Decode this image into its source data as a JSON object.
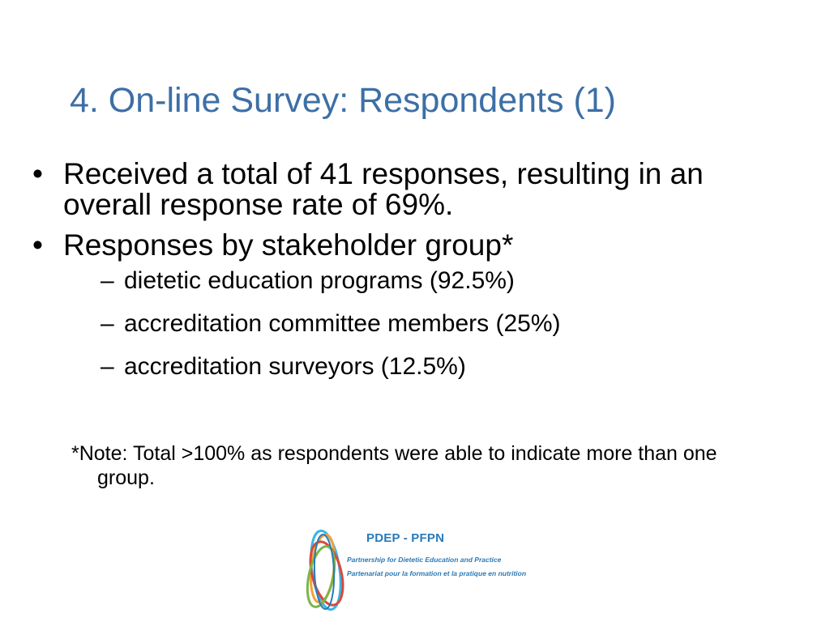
{
  "title": "4. On-line Survey: Respondents (1)",
  "colors": {
    "title": "#3c6fa6",
    "text": "#000000",
    "logo_blue": "#2a7ab8",
    "logo_orange": "#f2a23a",
    "logo_red": "#d94a3b",
    "logo_green": "#7ab648",
    "logo_cyan": "#3bb4e6"
  },
  "bullets": [
    {
      "marker": "•",
      "text": "Received a total of 41 responses, resulting in an overall response rate of 69%."
    },
    {
      "marker": "•",
      "text": "Responses by stakeholder group*",
      "subitems": [
        {
          "marker": "–",
          "text": "dietetic education programs (92.5%)"
        },
        {
          "marker": "–",
          "text": "accreditation committee members (25%)"
        },
        {
          "marker": "–",
          "text": "accreditation surveyors (12.5%)"
        }
      ]
    }
  ],
  "note": "*Note: Total >100% as respondents were able to indicate more than one group.",
  "logo": {
    "name": "PDEP - PFPN",
    "line1": "Partnership for Dietetic Education and Practice",
    "line2": "Partenariat pour la formation et la pratique en nutrition",
    "icon": "pdep-rings-logo-icon"
  }
}
